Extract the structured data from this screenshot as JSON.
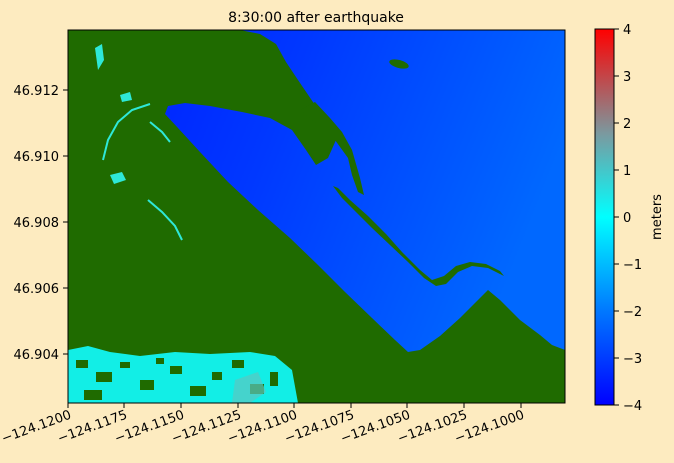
{
  "figure": {
    "title": "8:30:00 after earthquake",
    "background_color": "#fdebc0",
    "land_color": "#1f6b00"
  },
  "map": {
    "x_ticks": [
      "−124.1200",
      "−124.1175",
      "−124.1150",
      "−124.1125",
      "−124.1100",
      "−124.1075",
      "−124.1050",
      "−124.1025",
      "−124.1000"
    ],
    "y_ticks": [
      "46.912",
      "46.910",
      "46.908",
      "46.906",
      "46.904"
    ]
  },
  "colorbar": {
    "label": "meters",
    "ticks": [
      "4",
      "3",
      "2",
      "1",
      "0",
      "−1",
      "−2",
      "−3",
      "−4"
    ],
    "colormap": [
      "#0000ff",
      "#0078ff",
      "#00ffff",
      "#7a9aa0",
      "#ff0000"
    ],
    "range": [
      -4,
      4
    ]
  }
}
